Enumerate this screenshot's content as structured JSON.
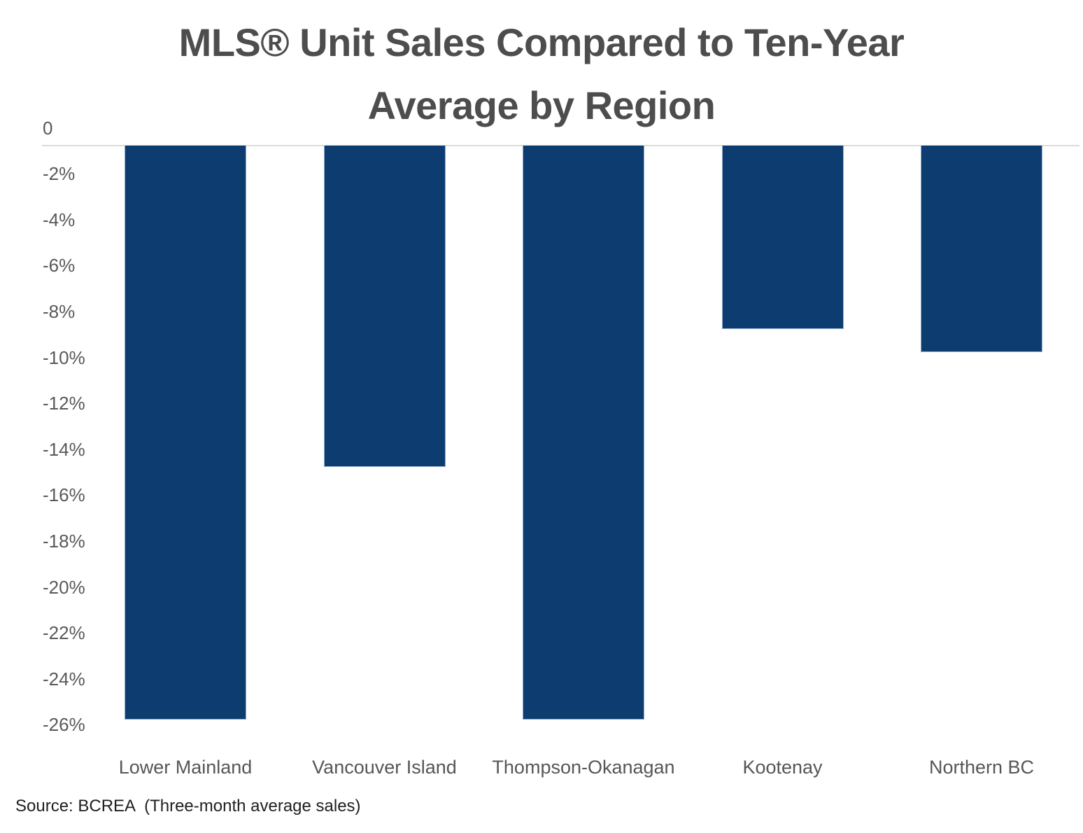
{
  "chart_data": {
    "type": "bar",
    "title": "MLS® Unit Sales Compared to Ten-Year Average by Region",
    "title_lines": [
      "MLS® Unit Sales Compared to Ten-Year",
      "Average by Region"
    ],
    "categories": [
      "Lower Mainland",
      "Vancouver Island",
      "Thompson-Okanagan",
      "Kootenay",
      "Northern BC"
    ],
    "values": [
      -25,
      -14,
      -25,
      -8,
      -9
    ],
    "unit": "%",
    "xlabel": "",
    "ylabel": "",
    "ylim": [
      -26,
      0
    ],
    "y_ticks": [
      {
        "label": "0",
        "value": 0
      },
      {
        "label": "-2%",
        "value": -2
      },
      {
        "label": "-4%",
        "value": -4
      },
      {
        "label": "-6%",
        "value": -6
      },
      {
        "label": "-8%",
        "value": -8
      },
      {
        "label": "-10%",
        "value": -10
      },
      {
        "label": "-12%",
        "value": -12
      },
      {
        "label": "-14%",
        "value": -14
      },
      {
        "label": "-16%",
        "value": -16
      },
      {
        "label": "-18%",
        "value": -18
      },
      {
        "label": "-20%",
        "value": -20
      },
      {
        "label": "-22%",
        "value": -22
      },
      {
        "label": "-24%",
        "value": -24
      },
      {
        "label": "-26%",
        "value": -26
      }
    ],
    "grid": "zero-line-only",
    "legend": "none",
    "source": "Source: BCREA  (Three-month average sales)",
    "colors": {
      "bar": "#0d3d70",
      "bar_edge": "#a8bfd8",
      "grid_line": "#dcdcdc",
      "title": "#4d4d4d",
      "tick_label": "#595959",
      "category_label": "#565656",
      "source_text": "#1f1f1f",
      "background": "#ffffff"
    }
  }
}
